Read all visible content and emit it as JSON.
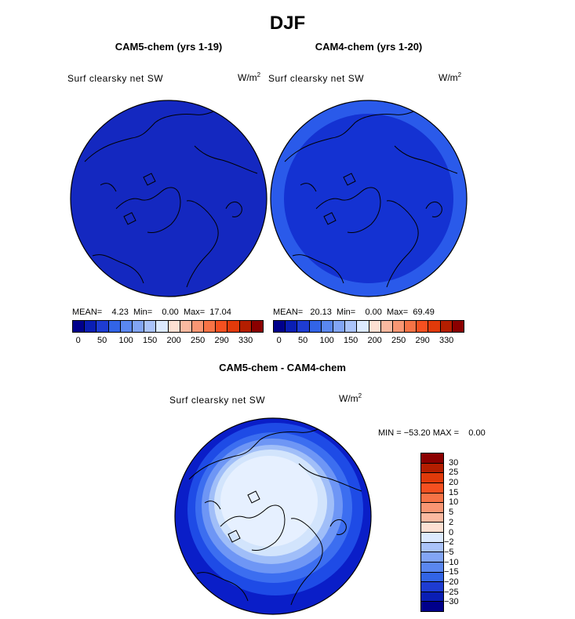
{
  "figure": {
    "title": "DJF"
  },
  "panels": [
    {
      "id": "left",
      "title": "CAM5-chem (yrs 1-19)",
      "variable": "Surf clearsky net SW",
      "units_base": "W/m",
      "units_exp": "2",
      "stats": {
        "mean_label": "MEAN=",
        "mean": "4.23",
        "min_label": "Min=",
        "min": "0.00",
        "max_label": "Max=",
        "max": "17.04"
      }
    },
    {
      "id": "right",
      "title": "CAM4-chem (yrs 1-20)",
      "variable": "Surf clearsky net SW",
      "units_base": "W/m",
      "units_exp": "2",
      "stats": {
        "mean_label": "MEAN=",
        "mean": "20.13",
        "min_label": "Min=",
        "min": "0.00",
        "max_label": "Max=",
        "max": "69.49"
      }
    },
    {
      "id": "diff",
      "title": "CAM5-chem - CAM4-chem",
      "variable": "Surf clearsky net SW",
      "units_base": "W/m",
      "units_exp": "2",
      "stats": {
        "min_label": "MIN =",
        "min": "−53.20",
        "max_label": "MAX =",
        "max": "0.00"
      }
    }
  ],
  "colorbar_abs": {
    "colors": [
      "#00008b",
      "#0a1eb4",
      "#1e3cd2",
      "#3264e6",
      "#5a87f0",
      "#82a5f5",
      "#aac3fa",
      "#dceaff",
      "#fde0d2",
      "#fbb9a0",
      "#f99673",
      "#f77346",
      "#f55020",
      "#e13a0a",
      "#b41e00",
      "#8b0000"
    ],
    "labels": [
      "0",
      "50",
      "100",
      "150",
      "200",
      "250",
      "290",
      "330"
    ]
  },
  "colorbar_diff": {
    "colors": [
      "#8b0000",
      "#b41e00",
      "#e13a0a",
      "#f55020",
      "#f77346",
      "#f99673",
      "#fbb9a0",
      "#fde0d2",
      "#dceaff",
      "#aac3fa",
      "#82a5f5",
      "#5a87f0",
      "#3264e6",
      "#1e3cd2",
      "#0a1eb4",
      "#00008b"
    ],
    "labels": [
      "30",
      "25",
      "20",
      "15",
      "10",
      "5",
      "2",
      "0",
      "−2",
      "−5",
      "−10",
      "−15",
      "−20",
      "−25",
      "−30"
    ]
  },
  "map_colors": {
    "deep": "#0a1ec8",
    "ring": "#1e4be6",
    "mid": "#3c6ef0",
    "light1": "#6e96f5",
    "light2": "#a0bef8",
    "pale": "#d2e4fc",
    "palest": "#e6f0ff"
  }
}
